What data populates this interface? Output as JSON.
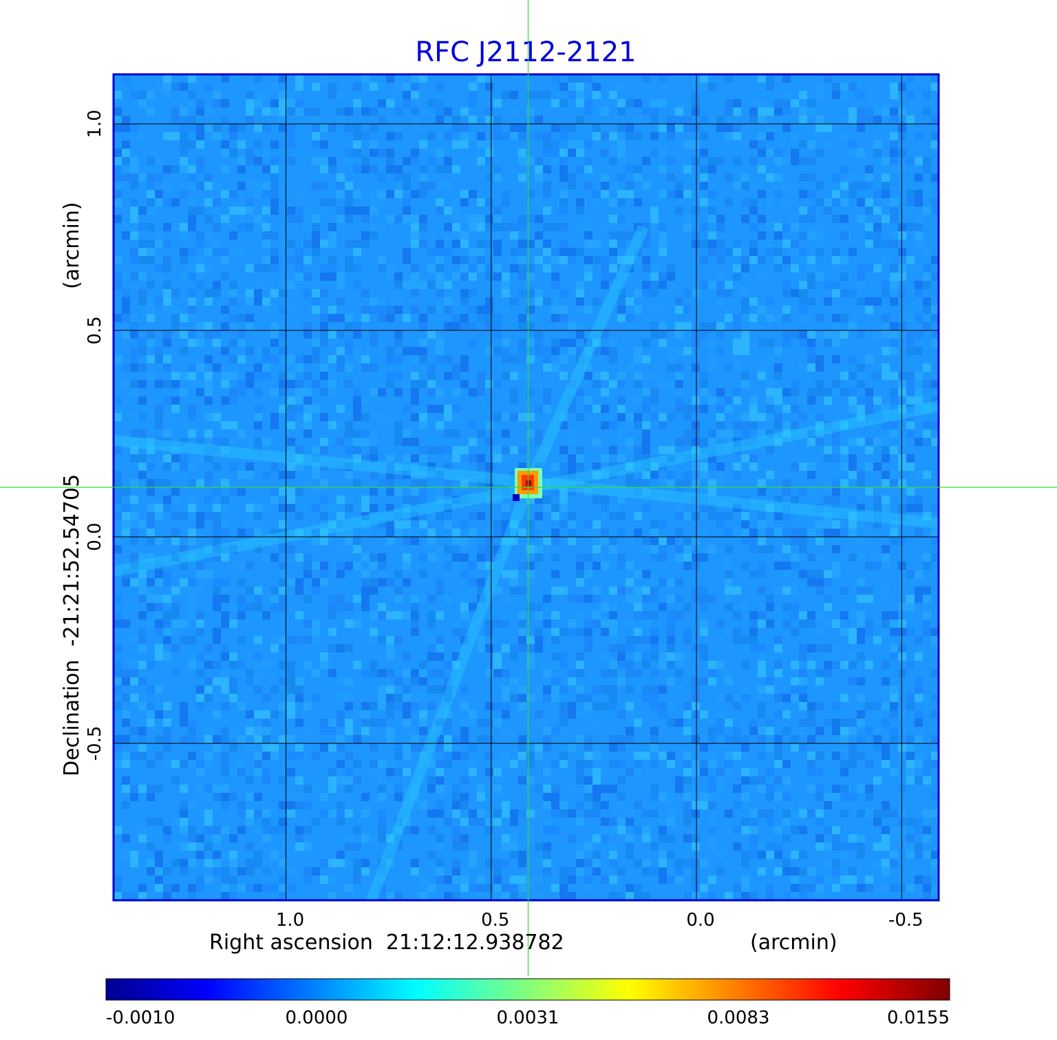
{
  "chart_data": {
    "type": "heatmap",
    "title": "RFC J2112-2121",
    "xlabel": "Right ascension  21:12:12.938782",
    "xunit": "(arcmin)",
    "ylabel": "Declination  -21:21:52.54705",
    "yunit": "(arcmin)",
    "x_ticks": [
      "1.0",
      "0.5",
      "0.0",
      "-0.5"
    ],
    "x_tick_values": [
      1.0,
      0.5,
      0.0,
      -0.5
    ],
    "y_ticks": [
      "1.0",
      "0.5",
      "0.0",
      "-0.5"
    ],
    "y_tick_values": [
      1.0,
      0.5,
      0.0,
      -0.5
    ],
    "xlim": [
      1.42,
      -0.59
    ],
    "ylim": [
      -0.88,
      1.12
    ],
    "grid": true,
    "crosshair": {
      "ra_offset": 0.41,
      "dec_offset": 0.12
    },
    "peak": {
      "ra_offset": 0.41,
      "dec_offset": 0.12,
      "value": 0.0155
    },
    "colorbar": {
      "ticks": [
        "-0.0010",
        "0.0000",
        "0.0031",
        "0.0083",
        "0.0155"
      ],
      "colormap": "jet",
      "placement": "bottom"
    },
    "colors": {
      "title": "#0000dd",
      "frame": "#0000cc",
      "grid": "#000000",
      "crosshair": "#33dd33",
      "background_field": "#1e96ff"
    }
  }
}
